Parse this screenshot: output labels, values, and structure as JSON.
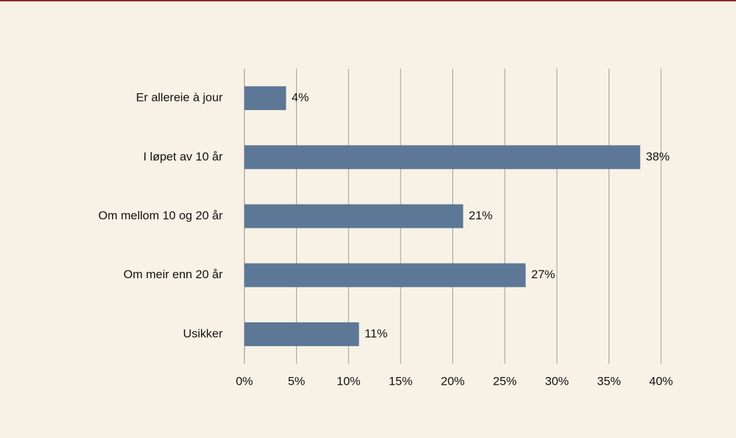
{
  "chart_data": {
    "type": "bar",
    "categories": [
      "Er allereie à jour",
      "I løpet av 10 år",
      "Om mellom 10 og 20 år",
      "Om meir enn 20 år",
      "Usikker"
    ],
    "values": [
      4,
      38,
      21,
      27,
      11
    ],
    "value_labels": [
      "4%",
      "38%",
      "21%",
      "27%",
      "11%"
    ],
    "color": "#5d7896",
    "xlim": [
      0,
      40
    ],
    "xticks": [
      {
        "value": 0,
        "label": "0%"
      },
      {
        "value": 5,
        "label": "5%"
      },
      {
        "value": 10,
        "label": "10%"
      },
      {
        "value": 15,
        "label": "15%"
      },
      {
        "value": 20,
        "label": "20%"
      },
      {
        "value": 25,
        "label": "25%"
      },
      {
        "value": 30,
        "label": "30%"
      },
      {
        "value": 35,
        "label": "35%"
      },
      {
        "value": 40,
        "label": "40%"
      }
    ],
    "grid": true
  }
}
